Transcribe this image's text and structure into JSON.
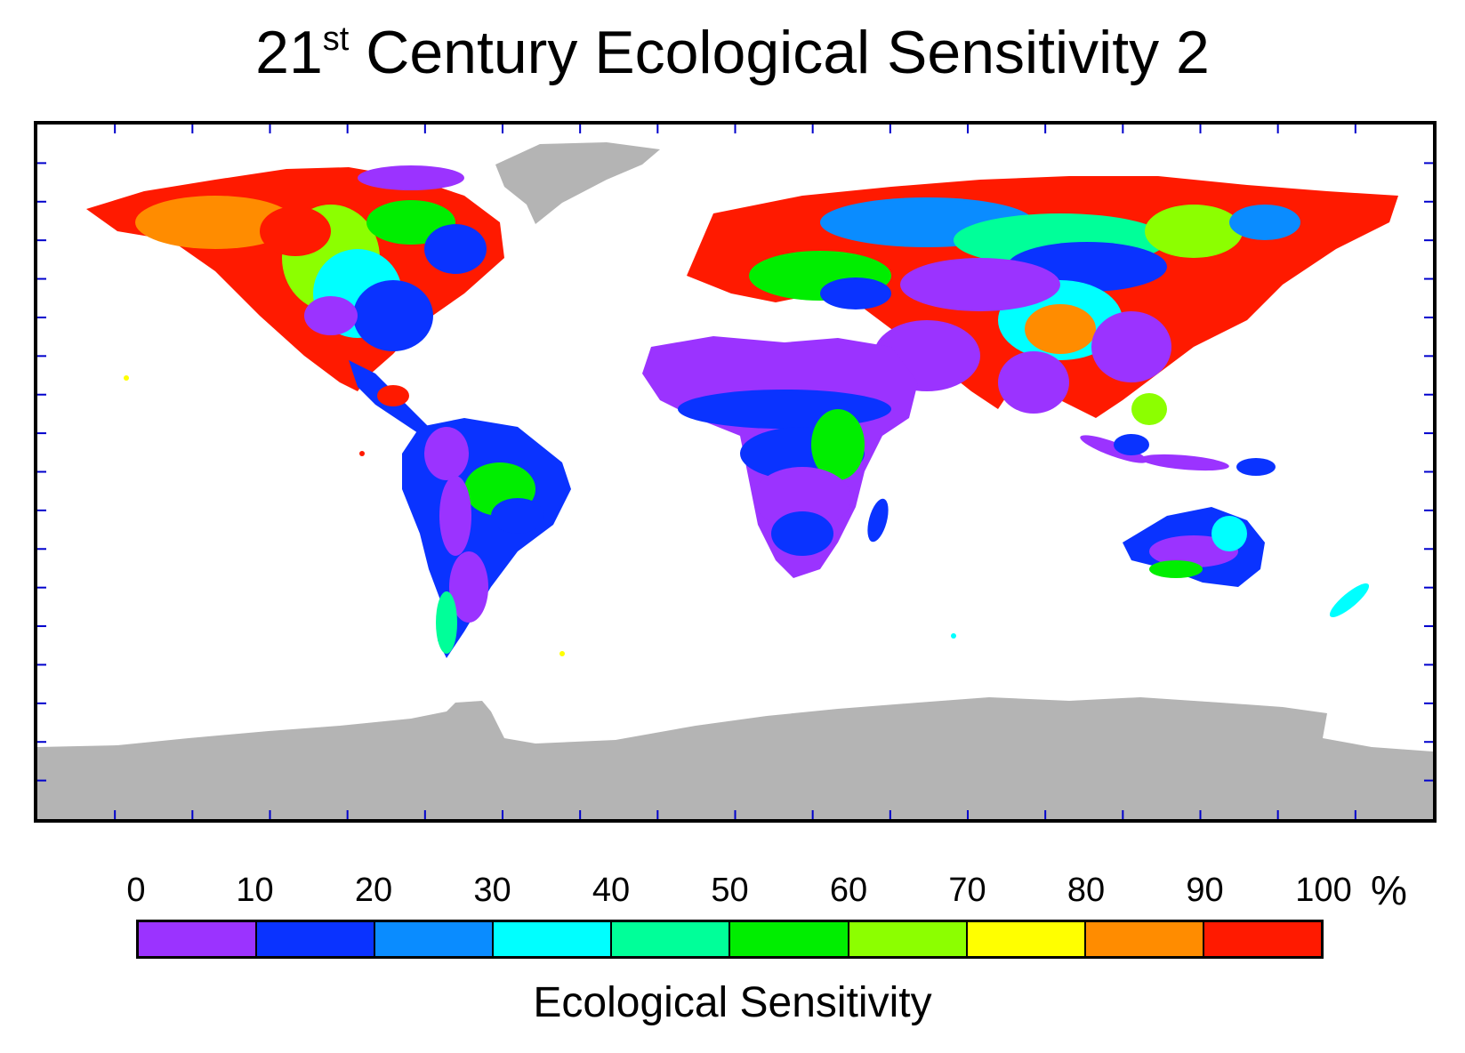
{
  "title": {
    "prefix": "21",
    "superscript": "st",
    "suffix": " Century Ecological Sensitivity 2"
  },
  "map": {
    "projection": "equirectangular",
    "land_no_data_color": "#b4b4b4",
    "ocean_color": "#ffffff",
    "tick_color": "#0000cc"
  },
  "legend": {
    "title": "Ecological Sensitivity",
    "unit": "%",
    "tick_labels": [
      "0",
      "10",
      "20",
      "30",
      "40",
      "50",
      "60",
      "70",
      "80",
      "90",
      "100"
    ],
    "bins": [
      {
        "range": [
          0,
          10
        ],
        "color": "#9b33ff"
      },
      {
        "range": [
          10,
          20
        ],
        "color": "#0a33ff"
      },
      {
        "range": [
          20,
          30
        ],
        "color": "#0a8cff"
      },
      {
        "range": [
          30,
          40
        ],
        "color": "#00ffff"
      },
      {
        "range": [
          40,
          50
        ],
        "color": "#00ff99"
      },
      {
        "range": [
          50,
          60
        ],
        "color": "#00ee00"
      },
      {
        "range": [
          60,
          70
        ],
        "color": "#8cff00"
      },
      {
        "range": [
          70,
          80
        ],
        "color": "#ffff00"
      },
      {
        "range": [
          80,
          90
        ],
        "color": "#ff8c00"
      },
      {
        "range": [
          90,
          100
        ],
        "color": "#ff1a00"
      }
    ]
  }
}
